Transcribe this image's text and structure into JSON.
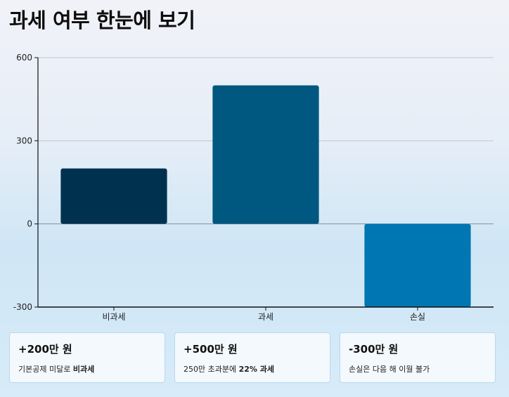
{
  "page": {
    "title": "과세 여부 한눈에 보기"
  },
  "chart_data": {
    "type": "bar",
    "categories": [
      "비과세",
      "과세",
      "손실"
    ],
    "values": [
      200,
      500,
      -300
    ],
    "ylim": [
      -300,
      600
    ],
    "yticks": [
      -300,
      0,
      300,
      600
    ],
    "ytick_labels": [
      "-300",
      "0",
      "300",
      "600"
    ],
    "grid": true,
    "colors": [
      "#00324f",
      "#00577f",
      "#0076b2"
    ],
    "title": "",
    "xlabel": "",
    "ylabel": ""
  },
  "cards": [
    {
      "value": "+200만 원",
      "note_prefix": "기본공제 미달로 ",
      "note_bold": "비과세",
      "note_suffix": ""
    },
    {
      "value": "+500만 원",
      "note_prefix": "250만 초과분에 ",
      "note_bold": "22% 과세",
      "note_suffix": ""
    },
    {
      "value": "-300만 원",
      "note_prefix": "손실은 다음 해 이월 불가",
      "note_bold": "",
      "note_suffix": ""
    }
  ]
}
